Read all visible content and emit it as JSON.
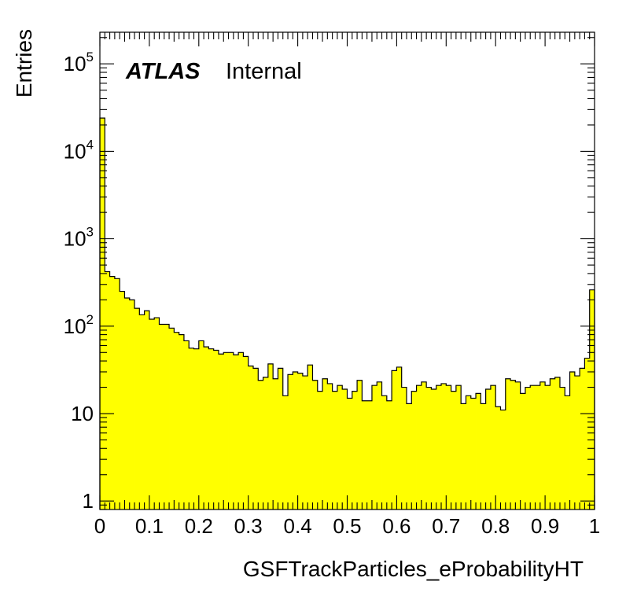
{
  "chart_data": {
    "type": "histogram",
    "xlabel": "GSFTrackParticles_eProbabilityHT",
    "ylabel": "Entries",
    "xlim": [
      0,
      1
    ],
    "ylim": [
      0.8,
      230000
    ],
    "y_scale": "log",
    "fill_color": "#ffff00",
    "line_color": "#000000",
    "grid": false,
    "x_ticks": [
      {
        "value": 0,
        "label": "0"
      },
      {
        "value": 0.1,
        "label": "0.1"
      },
      {
        "value": 0.2,
        "label": "0.2"
      },
      {
        "value": 0.3,
        "label": "0.3"
      },
      {
        "value": 0.4,
        "label": "0.4"
      },
      {
        "value": 0.5,
        "label": "0.5"
      },
      {
        "value": 0.6,
        "label": "0.6"
      },
      {
        "value": 0.7,
        "label": "0.7"
      },
      {
        "value": 0.8,
        "label": "0.8"
      },
      {
        "value": 0.9,
        "label": "0.9"
      },
      {
        "value": 1,
        "label": "1"
      }
    ],
    "y_ticks": [
      {
        "value": 1,
        "base": "1",
        "exp": ""
      },
      {
        "value": 10,
        "base": "10",
        "exp": ""
      },
      {
        "value": 100,
        "base": "10",
        "exp": "2"
      },
      {
        "value": 1000,
        "base": "10",
        "exp": "3"
      },
      {
        "value": 10000,
        "base": "10",
        "exp": "4"
      },
      {
        "value": 100000,
        "base": "10",
        "exp": "5"
      }
    ],
    "bins": 100,
    "values": [
      24000,
      420,
      370,
      350,
      250,
      210,
      200,
      160,
      135,
      150,
      120,
      125,
      105,
      105,
      95,
      85,
      80,
      68,
      56,
      55,
      68,
      58,
      55,
      53,
      48,
      50,
      50,
      47,
      50,
      45,
      35,
      33,
      24,
      26,
      37,
      25,
      33,
      16,
      28,
      30,
      29,
      27,
      36,
      24,
      18,
      25,
      22,
      18,
      21,
      19,
      15,
      18,
      24,
      14,
      14,
      21,
      23,
      16,
      14,
      31,
      34,
      20,
      13,
      18,
      21,
      23,
      20,
      19,
      21,
      22,
      21,
      18,
      21,
      13,
      16,
      15,
      17,
      13,
      19,
      21,
      12,
      11,
      25,
      24,
      23,
      17,
      20,
      21,
      21,
      23,
      21,
      25,
      26,
      20,
      16,
      30,
      27,
      33,
      43,
      260
    ]
  },
  "annotations": {
    "atlas": "ATLAS",
    "status": "Internal"
  }
}
